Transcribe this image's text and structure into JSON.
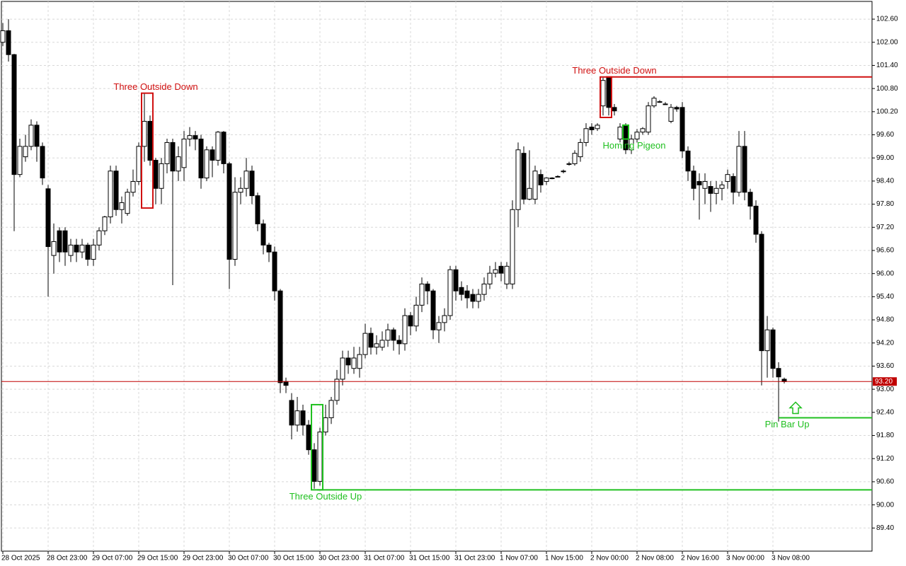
{
  "chart_data": {
    "type": "candlestick",
    "categories": [
      "28 Oct 2025",
      null,
      null,
      null,
      null,
      null,
      null,
      null,
      "28 Oct 23:00",
      null,
      null,
      null,
      null,
      null,
      null,
      null,
      "29 Oct 07:00",
      null,
      null,
      null,
      null,
      null,
      null,
      null,
      "29 Oct 15:00",
      null,
      null,
      null,
      null,
      null,
      null,
      null,
      "29 Oct 23:00",
      null,
      null,
      null,
      null,
      null,
      null,
      null,
      "30 Oct 07:00",
      null,
      null,
      null,
      null,
      null,
      null,
      null,
      "30 Oct 15:00",
      null,
      null,
      null,
      null,
      null,
      null,
      null,
      "30 Oct 23:00",
      null,
      null,
      null,
      null,
      null,
      null,
      null,
      "31 Oct 07:00",
      null,
      null,
      null,
      null,
      null,
      null,
      null,
      "31 Oct 15:00",
      null,
      null,
      null,
      null,
      null,
      null,
      null,
      "31 Oct 23:00",
      null,
      null,
      null,
      null,
      null,
      null,
      null,
      "1 Nov 07:00",
      null,
      null,
      null,
      null,
      null,
      null,
      null,
      "1 Nov 15:00",
      null,
      null,
      null,
      null,
      null,
      null,
      null,
      "2 Nov 00:00",
      null,
      null,
      null,
      null,
      null,
      null,
      null,
      "2 Nov 08:00",
      null,
      null,
      null,
      null,
      null,
      null,
      null,
      "2 Nov 16:00",
      null,
      null,
      null,
      null,
      null,
      null,
      null,
      "3 Nov 00:00",
      null,
      null,
      null,
      null,
      null,
      null,
      null,
      "3 Nov 08:00",
      null,
      null
    ],
    "open": [
      102.0,
      102.3,
      101.68,
      98.57,
      99.03,
      99.3,
      99.85,
      99.3,
      98.2,
      96.47,
      97.11,
      97.11,
      96.47,
      96.74,
      96.56,
      96.74,
      96.37,
      96.74,
      97.11,
      97.47,
      98.66,
      97.66,
      97.56,
      98.11,
      98.39,
      99.3,
      99.95,
      98.94,
      98.21,
      98.85,
      99.4,
      98.66,
      98.75,
      99.49,
      99.58,
      99.49,
      98.48,
      99.21,
      98.94,
      99.67,
      98.85,
      96.37,
      98.11,
      98.21,
      98.66,
      98.02,
      97.29,
      96.74,
      96.56,
      95.55,
      93.2,
      92.71,
      92.07,
      92.44,
      92.07,
      91.43,
      90.61,
      91.89,
      92.26,
      92.71,
      93.26,
      93.81,
      93.54,
      93.54,
      93.9,
      94.45,
      94.09,
      94.09,
      94.27,
      94.54,
      94.27,
      94.18,
      94.91,
      94.64,
      95.18,
      95.73,
      95.55,
      94.54,
      94.73,
      94.91,
      96.1,
      95.64,
      95.55,
      95.46,
      95.28,
      95.46,
      95.73,
      96.01,
      96.19,
      95.73,
      95.73,
      97.66,
      99.12,
      97.93,
      97.93,
      98.57,
      98.39,
      98.48,
      98.52,
      98.66,
      98.85,
      98.85,
      99.03,
      99.4,
      99.8,
      99.76,
      100.35,
      101.08,
      100.31,
      99.49,
      99.85,
      99.21,
      99.49,
      99.67,
      99.67,
      100.35,
      100.46,
      100.4,
      99.95,
      100.31,
      100.31,
      99.18,
      98.66,
      98.39,
      98.21,
      98.26,
      98.08,
      98.21,
      98.39,
      98.52,
      98.11,
      99.3,
      98.11,
      97.75,
      97.02,
      94.0,
      94.54,
      93.54,
      93.26
    ],
    "high": [
      102.5,
      102.6,
      101.7,
      99.5,
      99.6,
      100.0,
      99.95,
      99.4,
      98.3,
      97.3,
      97.2,
      97.2,
      96.9,
      96.9,
      96.9,
      96.8,
      96.9,
      97.2,
      97.5,
      98.8,
      98.8,
      98.0,
      98.2,
      98.7,
      99.4,
      100.68,
      100.1,
      99.0,
      99.0,
      99.5,
      99.5,
      99.3,
      99.7,
      99.8,
      99.7,
      99.6,
      99.3,
      99.3,
      99.7,
      99.7,
      98.9,
      98.5,
      98.5,
      99.0,
      98.8,
      98.1,
      97.4,
      96.8,
      96.7,
      95.6,
      93.3,
      92.9,
      92.8,
      92.6,
      92.2,
      91.6,
      92.0,
      92.6,
      92.8,
      93.5,
      94.0,
      94.0,
      94.1,
      94.1,
      94.7,
      94.6,
      94.4,
      94.5,
      94.7,
      94.6,
      94.4,
      95.1,
      95.0,
      95.4,
      95.9,
      95.8,
      95.6,
      94.9,
      95.1,
      96.2,
      96.2,
      95.8,
      95.7,
      95.6,
      95.6,
      95.9,
      96.2,
      96.3,
      96.3,
      96.3,
      97.9,
      99.4,
      99.3,
      99.2,
      98.8,
      98.7,
      98.5,
      98.5,
      98.55,
      98.7,
      98.9,
      99.2,
      99.5,
      99.9,
      99.9,
      99.9,
      101.08,
      101.1,
      100.4,
      99.9,
      99.9,
      99.6,
      99.75,
      99.8,
      100.45,
      100.6,
      100.5,
      100.45,
      100.4,
      100.35,
      100.45,
      99.3,
      98.8,
      98.6,
      98.6,
      98.4,
      98.4,
      98.4,
      98.7,
      98.6,
      99.7,
      99.7,
      98.2,
      97.9,
      97.1,
      94.9,
      94.6,
      93.7,
      93.3
    ],
    "low": [
      101.9,
      101.5,
      97.1,
      98.5,
      98.9,
      99.2,
      98.9,
      98.3,
      95.4,
      96.0,
      96.3,
      96.2,
      96.3,
      96.3,
      96.4,
      96.2,
      96.2,
      96.6,
      97.0,
      97.3,
      97.5,
      97.3,
      97.5,
      98.0,
      98.3,
      98.9,
      98.8,
      97.8,
      97.8,
      98.6,
      95.7,
      98.4,
      98.4,
      99.3,
      99.2,
      98.2,
      98.4,
      98.5,
      98.8,
      98.6,
      95.6,
      96.2,
      97.8,
      98.0,
      97.8,
      97.1,
      96.5,
      96.3,
      95.3,
      92.9,
      92.9,
      91.7,
      91.9,
      91.8,
      91.3,
      90.42,
      90.5,
      91.8,
      92.1,
      92.6,
      93.1,
      93.4,
      93.4,
      93.3,
      93.8,
      93.9,
      93.9,
      94.0,
      94.1,
      94.0,
      93.9,
      94.0,
      94.4,
      94.5,
      95.0,
      95.2,
      94.3,
      94.2,
      94.5,
      94.8,
      95.3,
      95.3,
      95.1,
      95.1,
      95.1,
      95.3,
      95.6,
      95.9,
      95.8,
      95.6,
      95.6,
      97.2,
      97.8,
      97.9,
      97.8,
      98.1,
      98.3,
      98.45,
      98.5,
      98.6,
      98.8,
      98.8,
      98.9,
      99.3,
      99.6,
      99.7,
      100.1,
      100.1,
      100.1,
      99.4,
      99.1,
      99.1,
      99.4,
      99.6,
      99.6,
      100.3,
      100.43,
      100.38,
      99.9,
      100.2,
      99.0,
      98.4,
      97.9,
      97.4,
      97.8,
      97.6,
      97.8,
      97.9,
      98.2,
      97.8,
      98.0,
      97.9,
      97.4,
      96.8,
      93.1,
      93.3,
      93.3,
      92.16,
      93.15
    ],
    "close": [
      102.3,
      101.68,
      98.57,
      99.3,
      99.3,
      99.85,
      99.3,
      98.48,
      96.7,
      96.83,
      96.56,
      96.56,
      96.74,
      96.56,
      96.74,
      96.37,
      96.74,
      97.11,
      97.47,
      98.66,
      97.66,
      97.84,
      98.11,
      98.39,
      99.3,
      99.95,
      98.94,
      98.21,
      98.85,
      99.4,
      98.66,
      99.03,
      99.49,
      99.58,
      99.49,
      98.48,
      99.21,
      98.94,
      99.67,
      98.85,
      96.37,
      98.11,
      98.21,
      98.66,
      98.02,
      97.29,
      96.74,
      96.56,
      95.55,
      93.17,
      93.1,
      92.07,
      92.44,
      92.07,
      91.43,
      90.61,
      91.89,
      92.26,
      92.71,
      93.26,
      93.81,
      93.63,
      93.81,
      93.9,
      94.45,
      94.09,
      94.18,
      94.27,
      94.54,
      94.27,
      94.18,
      94.91,
      94.64,
      95.18,
      95.73,
      95.55,
      94.54,
      94.73,
      94.91,
      96.1,
      95.55,
      95.46,
      95.37,
      95.28,
      95.46,
      95.73,
      96.01,
      96.1,
      96.01,
      96.19,
      97.66,
      99.21,
      97.93,
      98.21,
      98.66,
      98.3,
      98.48,
      98.48,
      98.52,
      98.66,
      98.85,
      99.12,
      99.4,
      99.76,
      99.73,
      99.85,
      101.01,
      100.31,
      100.22,
      99.8,
      99.21,
      99.49,
      99.67,
      99.76,
      100.35,
      100.55,
      100.46,
      100.4,
      100.31,
      100.27,
      99.18,
      98.66,
      98.21,
      98.3,
      98.39,
      98.08,
      98.21,
      98.3,
      98.57,
      98.11,
      99.3,
      98.11,
      97.75,
      97.02,
      94.0,
      94.54,
      93.54,
      93.32,
      93.2
    ],
    "ylim": [
      88.8,
      103.06
    ],
    "yticks": [
      {
        "value": 102.6,
        "label": "102.60"
      },
      {
        "value": 102.0,
        "label": "102.00"
      },
      {
        "value": 101.4,
        "label": "101.40"
      },
      {
        "value": 100.8,
        "label": "100.80"
      },
      {
        "value": 100.2,
        "label": "100.20"
      },
      {
        "value": 99.6,
        "label": "99.60"
      },
      {
        "value": 99.0,
        "label": "99.00"
      },
      {
        "value": 98.4,
        "label": "98.40"
      },
      {
        "value": 97.8,
        "label": "97.80"
      },
      {
        "value": 97.2,
        "label": "97.20"
      },
      {
        "value": 96.6,
        "label": "96.60"
      },
      {
        "value": 96.0,
        "label": "96.00"
      },
      {
        "value": 95.4,
        "label": "95.40"
      },
      {
        "value": 94.8,
        "label": "94.80"
      },
      {
        "value": 94.2,
        "label": "94.20"
      },
      {
        "value": 93.6,
        "label": "93.60"
      },
      {
        "value": 93.0,
        "label": "93.00"
      },
      {
        "value": 92.4,
        "label": "92.40"
      },
      {
        "value": 91.8,
        "label": "91.80"
      },
      {
        "value": 91.2,
        "label": "91.20"
      },
      {
        "value": 90.6,
        "label": "90.60"
      },
      {
        "value": 90.0,
        "label": "90.00"
      },
      {
        "value": 89.4,
        "label": "89.40"
      }
    ],
    "grid": true,
    "current_price": {
      "value": 93.2,
      "label": "93.20",
      "color": "#c00000"
    },
    "patterns": [
      {
        "label": "Three Outside Down",
        "color": "#d01010",
        "candles": [
          25,
          26
        ],
        "top": 100.68,
        "bottom": 97.7,
        "label_side": "above"
      },
      {
        "label": "Three Outside Up",
        "color": "#20c020",
        "candles": [
          55,
          56
        ],
        "top": 92.6,
        "bottom": 90.39,
        "level": 90.39,
        "label_side": "below"
      },
      {
        "label": "Three Outside Down",
        "color": "#d01010",
        "candles": [
          106,
          107
        ],
        "top": 101.1,
        "bottom": 100.05,
        "level": 101.1,
        "label_side": "above"
      },
      {
        "label": "Homing Pigeon",
        "color": "#20c020",
        "candles": [
          110,
          110
        ],
        "top": 99.85,
        "bottom": 99.49,
        "label_side": "below"
      },
      {
        "label": "Pin Bar Up",
        "color": "#20c020",
        "candles": [
          137,
          137
        ],
        "level": 92.26,
        "label_side": "below"
      }
    ]
  }
}
